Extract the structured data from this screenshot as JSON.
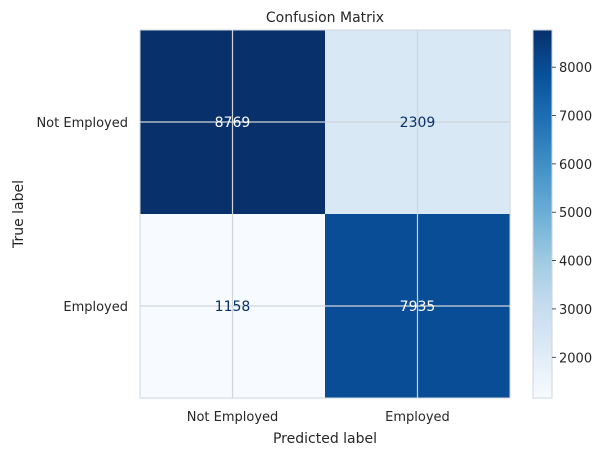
{
  "chart_data": {
    "type": "heatmap",
    "title": "Confusion Matrix",
    "xlabel": "Predicted label",
    "ylabel": "True label",
    "x_categories": [
      "Not Employed",
      "Employed"
    ],
    "y_categories": [
      "Not Employed",
      "Employed"
    ],
    "values": [
      [
        8769,
        2309
      ],
      [
        1158,
        7935
      ]
    ],
    "colorbar": {
      "colormap": "Blues",
      "range": [
        1158,
        8769
      ],
      "ticks": [
        2000,
        3000,
        4000,
        5000,
        6000,
        7000,
        8000
      ]
    },
    "grid": true,
    "colors": {
      "low": "#f7fbff",
      "high": "#08306b",
      "light_text": "#ffffff",
      "dark_text": "#08306b",
      "grid": "#d0d5da",
      "frame": "#cfd6de",
      "text": "#262626"
    }
  }
}
